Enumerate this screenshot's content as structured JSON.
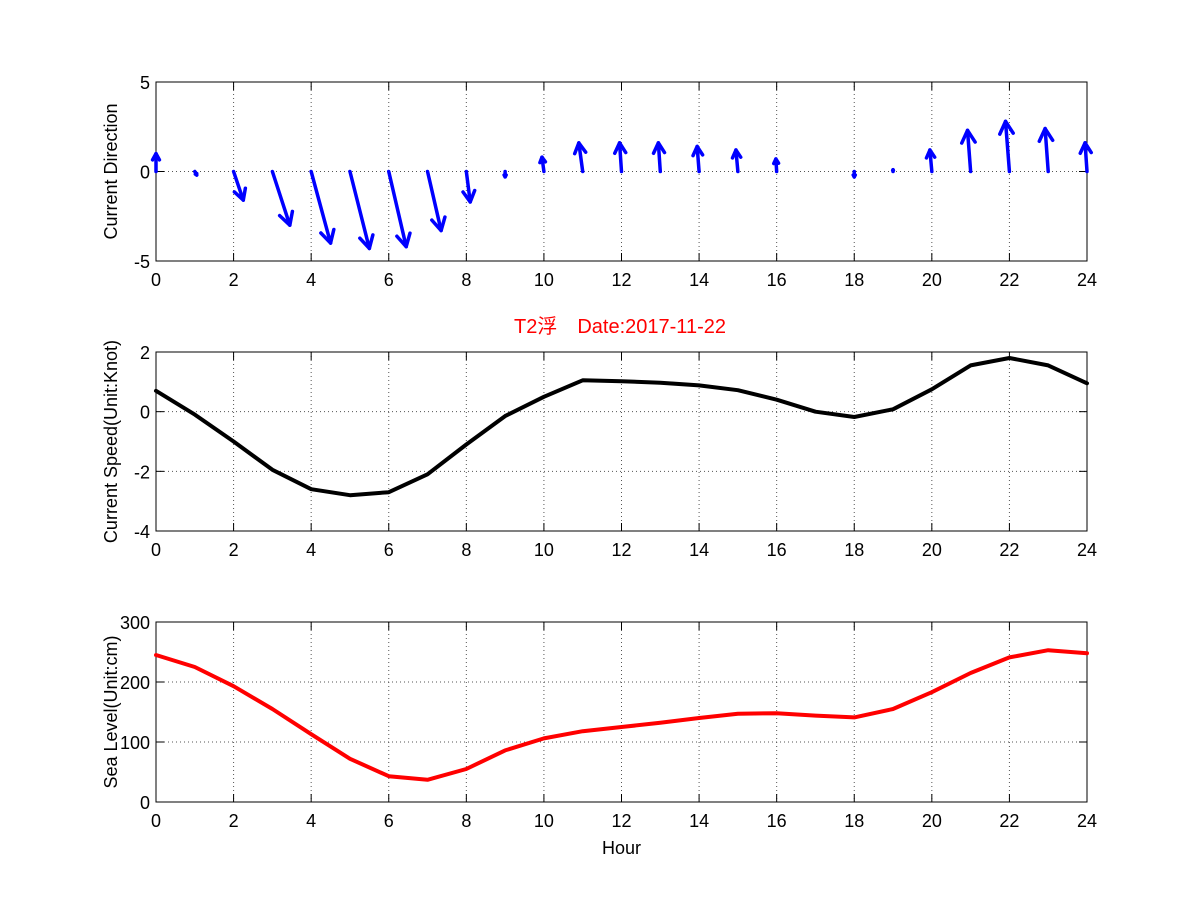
{
  "figure": {
    "title": "T2浮　Date:2017-11-22",
    "title_color": "#ff0000",
    "background": "#ffffff"
  },
  "chart_data": [
    {
      "type": "quiver",
      "ylabel": "Current Direction",
      "xlabel": "",
      "xlim": [
        0,
        24
      ],
      "ylim": [
        -5,
        5
      ],
      "xticks": [
        0,
        2,
        4,
        6,
        8,
        10,
        12,
        14,
        16,
        18,
        20,
        22,
        24
      ],
      "yticks": [
        -5,
        0,
        5
      ],
      "grid": true,
      "color": "#0000ff",
      "arrows": [
        {
          "x": 0,
          "u": 0.0,
          "v": 1.0
        },
        {
          "x": 1,
          "u": 0.05,
          "v": -0.2
        },
        {
          "x": 2,
          "u": 0.25,
          "v": -1.6
        },
        {
          "x": 3,
          "u": 0.45,
          "v": -3.0
        },
        {
          "x": 4,
          "u": 0.5,
          "v": -4.0
        },
        {
          "x": 5,
          "u": 0.5,
          "v": -4.3
        },
        {
          "x": 6,
          "u": 0.45,
          "v": -4.2
        },
        {
          "x": 7,
          "u": 0.35,
          "v": -3.3
        },
        {
          "x": 8,
          "u": 0.1,
          "v": -1.7
        },
        {
          "x": 9,
          "u": 0.0,
          "v": -0.3
        },
        {
          "x": 10,
          "u": -0.05,
          "v": 0.8
        },
        {
          "x": 11,
          "u": -0.1,
          "v": 1.6
        },
        {
          "x": 12,
          "u": -0.05,
          "v": 1.6
        },
        {
          "x": 13,
          "u": -0.05,
          "v": 1.6
        },
        {
          "x": 14,
          "u": -0.05,
          "v": 1.4
        },
        {
          "x": 15,
          "u": -0.05,
          "v": 1.2
        },
        {
          "x": 16,
          "u": -0.02,
          "v": 0.7
        },
        {
          "x": 17,
          "u": 0.0,
          "v": 0.0
        },
        {
          "x": 18,
          "u": 0.0,
          "v": -0.3
        },
        {
          "x": 19,
          "u": 0.0,
          "v": 0.1
        },
        {
          "x": 20,
          "u": -0.05,
          "v": 1.2
        },
        {
          "x": 21,
          "u": -0.08,
          "v": 2.3
        },
        {
          "x": 22,
          "u": -0.1,
          "v": 2.8
        },
        {
          "x": 23,
          "u": -0.08,
          "v": 2.4
        },
        {
          "x": 24,
          "u": -0.05,
          "v": 1.6
        }
      ]
    },
    {
      "type": "line",
      "ylabel": "Current Speed(Unit:Knot)",
      "xlabel": "",
      "xlim": [
        0,
        24
      ],
      "ylim": [
        -4,
        2
      ],
      "xticks": [
        0,
        2,
        4,
        6,
        8,
        10,
        12,
        14,
        16,
        18,
        20,
        22,
        24
      ],
      "yticks": [
        -4,
        -2,
        0,
        2
      ],
      "grid": true,
      "color": "#000000",
      "x": [
        0,
        1,
        2,
        3,
        4,
        5,
        6,
        7,
        8,
        9,
        10,
        11,
        12,
        13,
        14,
        15,
        16,
        17,
        18,
        19,
        20,
        21,
        22,
        23,
        24
      ],
      "values": [
        0.7,
        -0.1,
        -1.0,
        -1.95,
        -2.6,
        -2.8,
        -2.7,
        -2.1,
        -1.1,
        -0.15,
        0.5,
        1.05,
        1.02,
        0.97,
        0.88,
        0.72,
        0.4,
        0.0,
        -0.18,
        0.08,
        0.75,
        1.55,
        1.8,
        1.55,
        0.95
      ]
    },
    {
      "type": "line",
      "ylabel": "Sea Level(Unit:cm)",
      "xlabel": "Hour",
      "xlim": [
        0,
        24
      ],
      "ylim": [
        0,
        300
      ],
      "xticks": [
        0,
        2,
        4,
        6,
        8,
        10,
        12,
        14,
        16,
        18,
        20,
        22,
        24
      ],
      "yticks": [
        0,
        100,
        200,
        300
      ],
      "grid": true,
      "color": "#ff0000",
      "x": [
        0,
        1,
        2,
        3,
        4,
        5,
        6,
        7,
        8,
        9,
        10,
        11,
        12,
        13,
        14,
        15,
        16,
        17,
        18,
        19,
        20,
        21,
        22,
        23,
        24
      ],
      "values": [
        245,
        225,
        193,
        155,
        113,
        72,
        43,
        37,
        55,
        86,
        106,
        118,
        125,
        132,
        140,
        147,
        148,
        144,
        141,
        155,
        183,
        215,
        241,
        253,
        248
      ]
    }
  ]
}
